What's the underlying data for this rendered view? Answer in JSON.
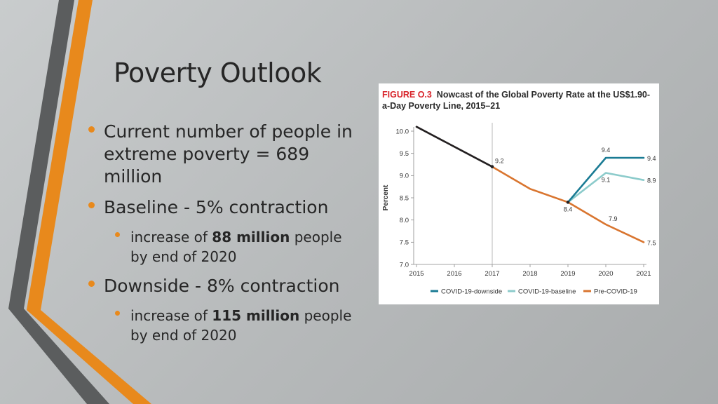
{
  "slide": {
    "title": "Poverty Outlook",
    "bullets": [
      {
        "text": "Current number of people in extreme poverty = 689 million"
      },
      {
        "text": "Baseline - 5% contraction",
        "sub": {
          "pre": "increase of ",
          "bold": "88 million",
          "post": " people by end of 2020"
        }
      },
      {
        "text": "Downside - 8% contraction",
        "sub": {
          "pre": "increase of ",
          "bold": "115 million",
          "post": " people by end of 2020"
        }
      }
    ],
    "accent_color": "#e8891c",
    "stripe_dark_color": "#5b5d5e"
  },
  "chart_data": {
    "type": "line",
    "figure_label": "FIGURE O.3",
    "title": "Nowcast of the Global Poverty Rate at the US$1.90-a-Day Poverty Line, 2015–21",
    "xlabel": "",
    "ylabel": "Percent",
    "x": [
      2015,
      2016,
      2017,
      2018,
      2019,
      2020,
      2021
    ],
    "xticks": [
      "2015",
      "2016",
      "2017",
      "2018",
      "2019",
      "2020",
      "2021"
    ],
    "yticks": [
      "10.0",
      "9.5",
      "9.0",
      "8.5",
      "8.0",
      "7.5",
      "7.0"
    ],
    "ylim": [
      7.0,
      10.0
    ],
    "reference_line_x": 2017,
    "grid": false,
    "legend_position": "bottom",
    "series": [
      {
        "key": "history",
        "color": "#231f20",
        "points": [
          [
            2015,
            10.1
          ],
          [
            2016,
            9.65
          ],
          [
            2017,
            9.2
          ]
        ]
      },
      {
        "key": "downside",
        "name": "COVID-19-downside",
        "color": "#1a7b94",
        "points": [
          [
            2019,
            8.4
          ],
          [
            2020,
            9.4
          ],
          [
            2021,
            9.4
          ]
        ]
      },
      {
        "key": "baseline",
        "name": "COVID-19-baseline",
        "color": "#8ccbcb",
        "points": [
          [
            2019,
            8.4
          ],
          [
            2020,
            9.06
          ],
          [
            2021,
            8.9
          ]
        ]
      },
      {
        "key": "precovid",
        "name": "Pre-COVID-19",
        "color": "#d9752f",
        "points": [
          [
            2017,
            9.2
          ],
          [
            2018,
            8.7
          ],
          [
            2019,
            8.4
          ],
          [
            2020,
            7.9
          ],
          [
            2021,
            7.5
          ]
        ]
      }
    ],
    "data_labels": [
      {
        "text": "9.2",
        "x": 2017,
        "y": 9.2,
        "place": "above-right"
      },
      {
        "text": "8.4",
        "x": 2019,
        "y": 8.4,
        "place": "below"
      },
      {
        "text": "9.4",
        "x": 2020,
        "y": 9.4,
        "place": "above"
      },
      {
        "text": "9.4",
        "x": 2021,
        "y": 9.4,
        "place": "right"
      },
      {
        "text": "9.1",
        "x": 2020,
        "y": 9.06,
        "place": "below"
      },
      {
        "text": "8.9",
        "x": 2021,
        "y": 8.9,
        "place": "right"
      },
      {
        "text": "7.9",
        "x": 2020,
        "y": 7.9,
        "place": "above-right"
      },
      {
        "text": "7.5",
        "x": 2021,
        "y": 7.5,
        "place": "right"
      }
    ]
  }
}
